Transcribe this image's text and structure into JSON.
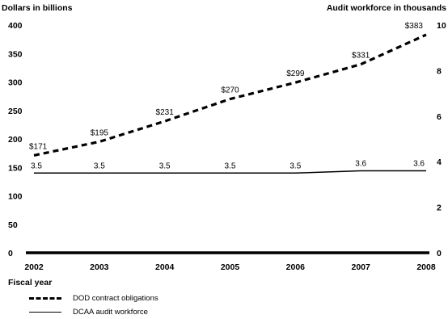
{
  "chart_data": {
    "type": "line",
    "y_left_label": "Dollars in billions",
    "y_right_label": "Audit workforce in thousands",
    "xlabel": "Fiscal year",
    "x": [
      "2002",
      "2003",
      "2004",
      "2005",
      "2006",
      "2007",
      "2008"
    ],
    "y_left_ticks": [
      "0",
      "50",
      "100",
      "150",
      "200",
      "250",
      "300",
      "350",
      "400"
    ],
    "y_right_ticks": [
      "0",
      "2",
      "4",
      "6",
      "8",
      "10"
    ],
    "ylim_left": [
      0,
      400
    ],
    "ylim_right": [
      0,
      10
    ],
    "grid": false,
    "series": [
      {
        "name": "DOD contract obligations",
        "axis": "left",
        "style": "dashed",
        "values": [
          171,
          195,
          231,
          270,
          299,
          331,
          383
        ],
        "labels": [
          "$171",
          "$195",
          "$231",
          "$270",
          "$299",
          "$331",
          "$383"
        ]
      },
      {
        "name": "DCAA audit workforce",
        "axis": "right",
        "style": "solid",
        "values": [
          3.5,
          3.5,
          3.5,
          3.5,
          3.5,
          3.6,
          3.6
        ],
        "labels": [
          "3.5",
          "3.5",
          "3.5",
          "3.5",
          "3.5",
          "3.6",
          "3.6"
        ]
      }
    ],
    "legend_position": "bottom-left"
  },
  "colors": {
    "line": "#000000"
  }
}
